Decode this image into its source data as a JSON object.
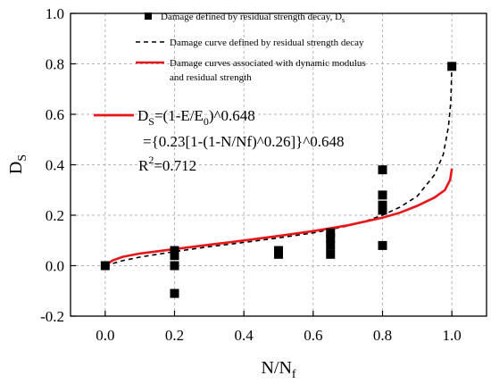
{
  "chart_data": {
    "type": "scatter",
    "xlabel": {
      "main": "N/N",
      "sub": "f"
    },
    "ylabel": {
      "main": "D",
      "sub": "S"
    },
    "xlim": [
      -0.1,
      1.1
    ],
    "ylim": [
      -0.2,
      1.0
    ],
    "x_ticks": [
      "0.0",
      "0.2",
      "0.4",
      "0.6",
      "0.8",
      "1.0"
    ],
    "y_ticks": [
      "-0.2",
      "0.0",
      "0.2",
      "0.4",
      "0.6",
      "0.8",
      "1.0"
    ],
    "grid": true,
    "legend_position": "top-right",
    "legend": {
      "scatter": {
        "text": "Damage defined by residual strength decay, D",
        "sub": "s"
      },
      "dashed": {
        "text": "Damage curve defined by residual strength decay"
      },
      "red": {
        "line1": "Damage curves associated with dynamic modulus",
        "line2": "and residual strength"
      }
    },
    "equation": {
      "line1": {
        "a": "D",
        "a_sub": "S",
        "b": "=(1-E/E",
        "b_sub": "0",
        "c": ")^0.648"
      },
      "line2": "={0.23[1-(1-N/Nf)^0.26]}^0.648",
      "line3": {
        "a": "R",
        "a_sup": "2",
        "b": "=0.712"
      }
    },
    "colors": {
      "scatter": "#000000",
      "dashed": "#000000",
      "red": "#e8161a",
      "grid": "#b4b4b4"
    },
    "series": [
      {
        "kind": "scatter",
        "points": [
          [
            0.0,
            0.0
          ],
          [
            0.2,
            0.06
          ],
          [
            0.2,
            0.04
          ],
          [
            0.2,
            0.0
          ],
          [
            0.2,
            -0.11
          ],
          [
            0.5,
            0.06
          ],
          [
            0.5,
            0.045
          ],
          [
            0.65,
            0.13
          ],
          [
            0.65,
            0.11
          ],
          [
            0.65,
            0.08
          ],
          [
            0.65,
            0.045
          ],
          [
            0.8,
            0.38
          ],
          [
            0.8,
            0.28
          ],
          [
            0.8,
            0.24
          ],
          [
            0.8,
            0.22
          ],
          [
            0.8,
            0.08
          ],
          [
            1.0,
            0.79
          ]
        ]
      },
      {
        "kind": "dashed",
        "points": [
          [
            0.0,
            0.0
          ],
          [
            0.05,
            0.02
          ],
          [
            0.1,
            0.034
          ],
          [
            0.2,
            0.056
          ],
          [
            0.3,
            0.075
          ],
          [
            0.4,
            0.092
          ],
          [
            0.5,
            0.11
          ],
          [
            0.6,
            0.13
          ],
          [
            0.7,
            0.158
          ],
          [
            0.75,
            0.176
          ],
          [
            0.8,
            0.2
          ],
          [
            0.85,
            0.232
          ],
          [
            0.9,
            0.275
          ],
          [
            0.95,
            0.36
          ],
          [
            0.975,
            0.44
          ],
          [
            0.99,
            0.55
          ],
          [
            0.997,
            0.65
          ],
          [
            1.0,
            0.8
          ]
        ]
      },
      {
        "kind": "red",
        "points": [
          [
            0.0,
            0.0
          ],
          [
            0.02,
            0.02
          ],
          [
            0.05,
            0.035
          ],
          [
            0.1,
            0.048
          ],
          [
            0.2,
            0.066
          ],
          [
            0.3,
            0.083
          ],
          [
            0.4,
            0.1
          ],
          [
            0.5,
            0.118
          ],
          [
            0.6,
            0.137
          ],
          [
            0.7,
            0.16
          ],
          [
            0.8,
            0.19
          ],
          [
            0.85,
            0.21
          ],
          [
            0.9,
            0.237
          ],
          [
            0.95,
            0.27
          ],
          [
            0.98,
            0.3
          ],
          [
            0.995,
            0.34
          ],
          [
            1.0,
            0.385
          ]
        ]
      }
    ]
  }
}
